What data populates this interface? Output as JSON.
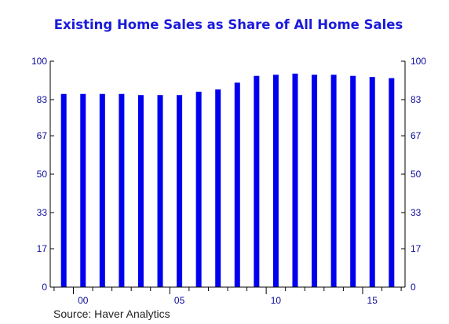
{
  "colors": {
    "bar": "#0000ee",
    "axis": "#000000",
    "text": "#0a0a9a",
    "title": "#1a1adb",
    "source": "#222222"
  },
  "source_text": "Source:   Haver Analytics",
  "chart_data": {
    "type": "bar",
    "title": "Existing Home Sales as Share of All Home Sales",
    "xlabel": "",
    "ylabel": "",
    "x": [
      1999,
      2000,
      2001,
      2002,
      2003,
      2004,
      2005,
      2006,
      2007,
      2008,
      2009,
      2010,
      2011,
      2012,
      2013,
      2014,
      2015,
      2016
    ],
    "values": [
      85.5,
      85.5,
      85.5,
      85.5,
      85.0,
      85.0,
      85.0,
      86.5,
      87.5,
      90.5,
      93.5,
      94.0,
      94.5,
      94.0,
      94.0,
      93.5,
      93.0,
      92.5
    ],
    "ylim": [
      0,
      100
    ],
    "xlim": [
      1998.3,
      2016.7
    ],
    "yticks": [
      0,
      17,
      33,
      50,
      67,
      83,
      100
    ],
    "xtick_labels": [
      {
        "year": 2000,
        "label": "00"
      },
      {
        "year": 2005,
        "label": "05"
      },
      {
        "year": 2010,
        "label": "10"
      },
      {
        "year": 2015,
        "label": "15"
      }
    ],
    "grid": false,
    "legend": "none",
    "secondary_y_axis": true
  }
}
